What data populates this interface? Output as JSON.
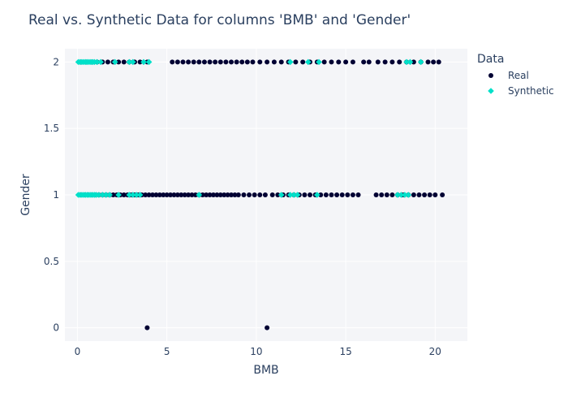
{
  "colors": {
    "real": "#000033",
    "synthetic": "#01E0C9",
    "plot_bg": "#f4f5f8",
    "grid": "#ffffff",
    "text": "#2a3f5f"
  },
  "chart_data": {
    "type": "scatter",
    "title": "Real vs. Synthetic Data for columns 'BMB' and 'Gender'",
    "xlabel": "BMB",
    "ylabel": "Gender",
    "xlim": [
      -0.7,
      21.8
    ],
    "ylim": [
      -0.1,
      2.1
    ],
    "xticks": [
      0,
      5,
      10,
      15,
      20
    ],
    "yticks": [
      0,
      0.5,
      1,
      1.5,
      2
    ],
    "ytick_labels": [
      "0",
      "0.5",
      "1",
      "1.5",
      "2"
    ],
    "grid": true,
    "legend": {
      "title": "Data",
      "position": "top-right"
    },
    "series": [
      {
        "name": "Real",
        "marker": "circle",
        "color": "#000033",
        "points": [
          [
            3.9,
            0
          ],
          [
            10.6,
            0
          ],
          [
            0.2,
            1
          ],
          [
            0.4,
            1
          ],
          [
            0.6,
            1
          ],
          [
            0.8,
            1
          ],
          [
            1.0,
            1
          ],
          [
            1.2,
            1
          ],
          [
            1.4,
            1
          ],
          [
            1.6,
            1
          ],
          [
            1.8,
            1
          ],
          [
            2.0,
            1
          ],
          [
            2.2,
            1
          ],
          [
            2.4,
            1
          ],
          [
            2.6,
            1
          ],
          [
            2.8,
            1
          ],
          [
            3.0,
            1
          ],
          [
            3.2,
            1
          ],
          [
            3.4,
            1
          ],
          [
            3.6,
            1
          ],
          [
            3.8,
            1
          ],
          [
            4.0,
            1
          ],
          [
            4.2,
            1
          ],
          [
            4.4,
            1
          ],
          [
            4.6,
            1
          ],
          [
            4.8,
            1
          ],
          [
            5.0,
            1
          ],
          [
            5.2,
            1
          ],
          [
            5.4,
            1
          ],
          [
            5.6,
            1
          ],
          [
            5.8,
            1
          ],
          [
            6.0,
            1
          ],
          [
            6.2,
            1
          ],
          [
            6.4,
            1
          ],
          [
            6.6,
            1
          ],
          [
            6.8,
            1
          ],
          [
            7.0,
            1
          ],
          [
            7.2,
            1
          ],
          [
            7.4,
            1
          ],
          [
            7.6,
            1
          ],
          [
            7.8,
            1
          ],
          [
            8.0,
            1
          ],
          [
            8.2,
            1
          ],
          [
            8.4,
            1
          ],
          [
            8.6,
            1
          ],
          [
            8.8,
            1
          ],
          [
            9.0,
            1
          ],
          [
            9.3,
            1
          ],
          [
            9.6,
            1
          ],
          [
            9.9,
            1
          ],
          [
            10.2,
            1
          ],
          [
            10.5,
            1
          ],
          [
            10.9,
            1
          ],
          [
            11.2,
            1
          ],
          [
            11.5,
            1
          ],
          [
            11.8,
            1
          ],
          [
            12.1,
            1
          ],
          [
            12.4,
            1
          ],
          [
            12.7,
            1
          ],
          [
            13.0,
            1
          ],
          [
            13.3,
            1
          ],
          [
            13.6,
            1
          ],
          [
            13.9,
            1
          ],
          [
            14.2,
            1
          ],
          [
            14.5,
            1
          ],
          [
            14.8,
            1
          ],
          [
            15.1,
            1
          ],
          [
            15.4,
            1
          ],
          [
            15.7,
            1
          ],
          [
            16.7,
            1
          ],
          [
            17.0,
            1
          ],
          [
            17.3,
            1
          ],
          [
            17.6,
            1
          ],
          [
            17.9,
            1
          ],
          [
            18.2,
            1
          ],
          [
            18.5,
            1
          ],
          [
            18.8,
            1
          ],
          [
            19.1,
            1
          ],
          [
            19.4,
            1
          ],
          [
            19.7,
            1
          ],
          [
            20.0,
            1
          ],
          [
            20.4,
            1
          ],
          [
            0.2,
            2
          ],
          [
            0.5,
            2
          ],
          [
            0.8,
            2
          ],
          [
            1.1,
            2
          ],
          [
            1.4,
            2
          ],
          [
            1.7,
            2
          ],
          [
            2.0,
            2
          ],
          [
            2.3,
            2
          ],
          [
            2.6,
            2
          ],
          [
            2.9,
            2
          ],
          [
            3.2,
            2
          ],
          [
            3.5,
            2
          ],
          [
            3.9,
            2
          ],
          [
            5.3,
            2
          ],
          [
            5.6,
            2
          ],
          [
            5.9,
            2
          ],
          [
            6.2,
            2
          ],
          [
            6.5,
            2
          ],
          [
            6.8,
            2
          ],
          [
            7.1,
            2
          ],
          [
            7.4,
            2
          ],
          [
            7.7,
            2
          ],
          [
            8.0,
            2
          ],
          [
            8.3,
            2
          ],
          [
            8.6,
            2
          ],
          [
            8.9,
            2
          ],
          [
            9.2,
            2
          ],
          [
            9.5,
            2
          ],
          [
            9.8,
            2
          ],
          [
            10.2,
            2
          ],
          [
            10.6,
            2
          ],
          [
            11.0,
            2
          ],
          [
            11.4,
            2
          ],
          [
            11.8,
            2
          ],
          [
            12.2,
            2
          ],
          [
            12.6,
            2
          ],
          [
            13.0,
            2
          ],
          [
            13.4,
            2
          ],
          [
            13.8,
            2
          ],
          [
            14.2,
            2
          ],
          [
            14.6,
            2
          ],
          [
            15.0,
            2
          ],
          [
            15.4,
            2
          ],
          [
            16.0,
            2
          ],
          [
            16.3,
            2
          ],
          [
            16.8,
            2
          ],
          [
            17.2,
            2
          ],
          [
            17.6,
            2
          ],
          [
            18.0,
            2
          ],
          [
            18.4,
            2
          ],
          [
            18.8,
            2
          ],
          [
            19.2,
            2
          ],
          [
            19.6,
            2
          ],
          [
            19.9,
            2
          ],
          [
            20.2,
            2
          ]
        ]
      },
      {
        "name": "Synthetic",
        "marker": "diamond",
        "color": "#01E0C9",
        "points": [
          [
            0.05,
            1
          ],
          [
            0.15,
            1
          ],
          [
            0.25,
            1
          ],
          [
            0.35,
            1
          ],
          [
            0.45,
            1
          ],
          [
            0.55,
            1
          ],
          [
            0.65,
            1
          ],
          [
            0.75,
            1
          ],
          [
            0.85,
            1
          ],
          [
            0.95,
            1
          ],
          [
            1.05,
            1
          ],
          [
            1.2,
            1
          ],
          [
            1.4,
            1
          ],
          [
            1.6,
            1
          ],
          [
            1.8,
            1
          ],
          [
            2.3,
            1
          ],
          [
            2.9,
            1
          ],
          [
            3.1,
            1
          ],
          [
            3.3,
            1
          ],
          [
            3.5,
            1
          ],
          [
            6.8,
            1
          ],
          [
            11.4,
            1
          ],
          [
            11.9,
            1
          ],
          [
            12.1,
            1
          ],
          [
            12.3,
            1
          ],
          [
            13.4,
            1
          ],
          [
            17.9,
            1
          ],
          [
            18.1,
            1
          ],
          [
            18.3,
            1
          ],
          [
            18.5,
            1
          ],
          [
            0.05,
            2
          ],
          [
            0.15,
            2
          ],
          [
            0.25,
            2
          ],
          [
            0.35,
            2
          ],
          [
            0.45,
            2
          ],
          [
            0.55,
            2
          ],
          [
            0.65,
            2
          ],
          [
            0.75,
            2
          ],
          [
            0.85,
            2
          ],
          [
            0.95,
            2
          ],
          [
            1.1,
            2
          ],
          [
            1.3,
            2
          ],
          [
            2.1,
            2
          ],
          [
            2.9,
            2
          ],
          [
            3.1,
            2
          ],
          [
            3.7,
            2
          ],
          [
            4.0,
            2
          ],
          [
            11.9,
            2
          ],
          [
            12.9,
            2
          ],
          [
            13.5,
            2
          ],
          [
            18.4,
            2
          ],
          [
            18.6,
            2
          ],
          [
            19.2,
            2
          ]
        ]
      }
    ]
  }
}
